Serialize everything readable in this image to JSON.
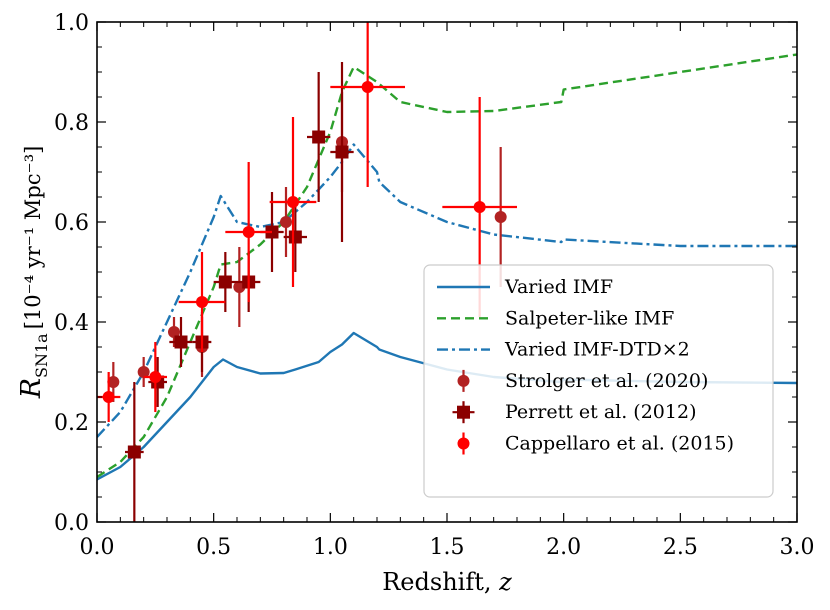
{
  "chart_data": {
    "type": "line",
    "xlabel": "Redshift, ",
    "xlabel_var": "z",
    "ylabel_main": "R",
    "ylabel_sub": "SN1a",
    "ylabel_units": "[10⁻⁴ yr⁻¹ Mpc⁻³]",
    "xlim": [
      0.0,
      3.0
    ],
    "ylim": [
      0.0,
      1.0
    ],
    "x_ticks": [
      "0.0",
      "0.5",
      "1.0",
      "1.5",
      "2.0",
      "2.5",
      "3.0"
    ],
    "y_ticks": [
      "0.0",
      "0.2",
      "0.4",
      "0.6",
      "0.8",
      "1.0"
    ],
    "legend_position": "lower-right",
    "series": [
      {
        "name": "Varied IMF",
        "color": "#1f77b4",
        "dash": "solid",
        "points": [
          [
            0.0,
            0.085
          ],
          [
            0.1,
            0.11
          ],
          [
            0.2,
            0.15
          ],
          [
            0.3,
            0.2
          ],
          [
            0.4,
            0.25
          ],
          [
            0.5,
            0.31
          ],
          [
            0.54,
            0.325
          ],
          [
            0.6,
            0.31
          ],
          [
            0.7,
            0.297
          ],
          [
            0.8,
            0.298
          ],
          [
            0.85,
            0.305
          ],
          [
            0.95,
            0.32
          ],
          [
            1.0,
            0.34
          ],
          [
            1.05,
            0.355
          ],
          [
            1.1,
            0.378
          ],
          [
            1.2,
            0.35
          ],
          [
            1.21,
            0.345
          ],
          [
            1.3,
            0.33
          ],
          [
            1.5,
            0.305
          ],
          [
            1.7,
            0.29
          ],
          [
            1.99,
            0.28
          ],
          [
            2.0,
            0.285
          ],
          [
            2.5,
            0.28
          ],
          [
            3.0,
            0.278
          ]
        ]
      },
      {
        "name": "Salpeter-like IMF",
        "color": "#2ca02c",
        "dash": "dashed",
        "points": [
          [
            0.0,
            0.09
          ],
          [
            0.1,
            0.12
          ],
          [
            0.2,
            0.17
          ],
          [
            0.3,
            0.25
          ],
          [
            0.4,
            0.36
          ],
          [
            0.5,
            0.47
          ],
          [
            0.53,
            0.515
          ],
          [
            0.6,
            0.52
          ],
          [
            0.7,
            0.555
          ],
          [
            0.8,
            0.6
          ],
          [
            0.9,
            0.67
          ],
          [
            1.0,
            0.78
          ],
          [
            1.05,
            0.86
          ],
          [
            1.1,
            0.91
          ],
          [
            1.2,
            0.88
          ],
          [
            1.3,
            0.84
          ],
          [
            1.5,
            0.82
          ],
          [
            1.7,
            0.822
          ],
          [
            1.99,
            0.84
          ],
          [
            2.0,
            0.865
          ],
          [
            2.5,
            0.9
          ],
          [
            3.0,
            0.935
          ]
        ]
      },
      {
        "name": "Varied IMF-DTD×2",
        "color": "#1f77b4",
        "dash": "dashdot",
        "points": [
          [
            0.0,
            0.17
          ],
          [
            0.1,
            0.22
          ],
          [
            0.2,
            0.3
          ],
          [
            0.3,
            0.4
          ],
          [
            0.4,
            0.5
          ],
          [
            0.5,
            0.61
          ],
          [
            0.53,
            0.652
          ],
          [
            0.6,
            0.6
          ],
          [
            0.7,
            0.59
          ],
          [
            0.8,
            0.6
          ],
          [
            0.9,
            0.64
          ],
          [
            1.0,
            0.69
          ],
          [
            1.05,
            0.72
          ],
          [
            1.1,
            0.755
          ],
          [
            1.2,
            0.7
          ],
          [
            1.21,
            0.68
          ],
          [
            1.3,
            0.64
          ],
          [
            1.5,
            0.6
          ],
          [
            1.7,
            0.575
          ],
          [
            1.99,
            0.56
          ],
          [
            2.0,
            0.565
          ],
          [
            2.5,
            0.552
          ],
          [
            3.0,
            0.552
          ]
        ]
      }
    ],
    "errorbar_series": [
      {
        "name": "Strolger et al. (2020)",
        "color": "#b22222",
        "marker": "circle",
        "points": [
          {
            "x": 0.07,
            "y": 0.28,
            "xerr": 0.0,
            "yerr": 0.04
          },
          {
            "x": 0.2,
            "y": 0.3,
            "xerr": 0.0,
            "yerr": 0.03
          },
          {
            "x": 0.33,
            "y": 0.38,
            "xerr": 0.0,
            "yerr": 0.03
          },
          {
            "x": 0.45,
            "y": 0.35,
            "xerr": 0.0,
            "yerr": 0.06
          },
          {
            "x": 0.61,
            "y": 0.47,
            "xerr": 0.0,
            "yerr": 0.08
          },
          {
            "x": 0.81,
            "y": 0.6,
            "xerr": 0.0,
            "yerr": 0.07
          },
          {
            "x": 1.05,
            "y": 0.76,
            "xerr": 0.0,
            "yerr": 0.1
          },
          {
            "x": 1.73,
            "y": 0.61,
            "xerr": 0.0,
            "yerr": 0.14
          }
        ]
      },
      {
        "name": "Perrett et al. (2012)",
        "color": "#8b0000",
        "marker": "square",
        "points": [
          {
            "x": 0.16,
            "y": 0.14,
            "xerr": 0.04,
            "yerr": 0.14
          },
          {
            "x": 0.26,
            "y": 0.28,
            "xerr": 0.04,
            "yerr": 0.05
          },
          {
            "x": 0.36,
            "y": 0.36,
            "xerr": 0.05,
            "yerr": 0.05
          },
          {
            "x": 0.45,
            "y": 0.36,
            "xerr": 0.04,
            "yerr": 0.06
          },
          {
            "x": 0.55,
            "y": 0.48,
            "xerr": 0.05,
            "yerr": 0.06
          },
          {
            "x": 0.65,
            "y": 0.48,
            "xerr": 0.05,
            "yerr": 0.06
          },
          {
            "x": 0.75,
            "y": 0.58,
            "xerr": 0.05,
            "yerr": 0.08
          },
          {
            "x": 0.85,
            "y": 0.57,
            "xerr": 0.05,
            "yerr": 0.07
          },
          {
            "x": 0.95,
            "y": 0.77,
            "xerr": 0.05,
            "yerr": 0.13
          },
          {
            "x": 1.05,
            "y": 0.74,
            "xerr": 0.05,
            "yerr": 0.18
          }
        ]
      },
      {
        "name": "Cappellaro et al. (2015)",
        "color": "#ff0000",
        "marker": "circle",
        "points": [
          {
            "x": 0.05,
            "y": 0.25,
            "xerr": 0.05,
            "yerr": 0.05
          },
          {
            "x": 0.25,
            "y": 0.29,
            "xerr": 0.05,
            "yerr": 0.07
          },
          {
            "x": 0.45,
            "y": 0.44,
            "xerr": 0.1,
            "yerr": 0.1
          },
          {
            "x": 0.65,
            "y": 0.58,
            "xerr": 0.1,
            "yerr": 0.14
          },
          {
            "x": 0.84,
            "y": 0.64,
            "xerr": 0.1,
            "yerr": 0.17
          },
          {
            "x": 1.16,
            "y": 0.87,
            "xerr": 0.16,
            "yerr": 0.2
          },
          {
            "x": 1.64,
            "y": 0.63,
            "xerr": 0.16,
            "yerr": 0.22
          }
        ]
      }
    ]
  }
}
